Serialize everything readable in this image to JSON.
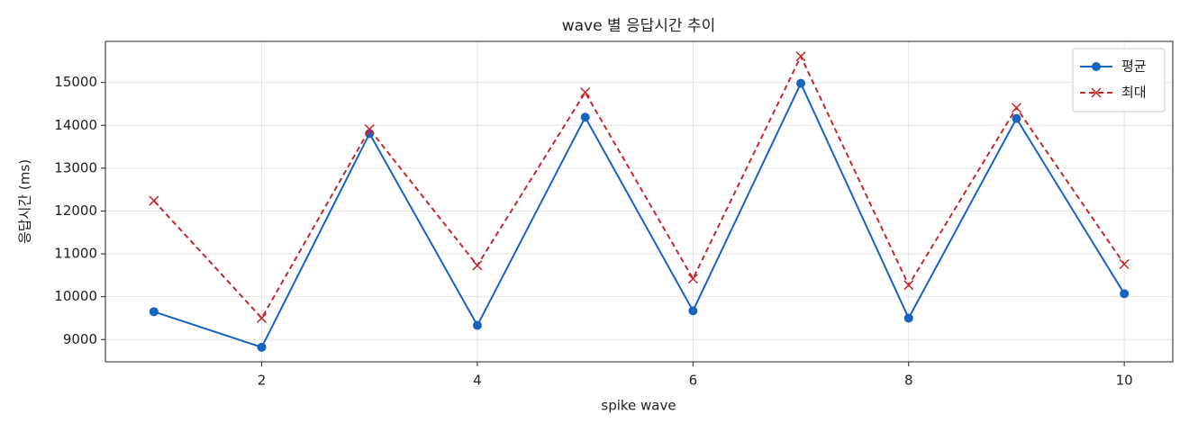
{
  "chart_data": {
    "type": "line",
    "title": "wave 별 응답시간 추이",
    "xlabel": "spike wave",
    "ylabel": "응답시간 (ms)",
    "x": [
      1,
      2,
      3,
      4,
      5,
      6,
      7,
      8,
      9,
      10
    ],
    "series": [
      {
        "name": "평균",
        "color": "#1565c0",
        "dash": false,
        "marker": "circle",
        "values": [
          9650,
          8820,
          13810,
          9330,
          14190,
          9670,
          14980,
          9500,
          14160,
          10070
        ]
      },
      {
        "name": "최대",
        "color": "#c62828",
        "dash": true,
        "marker": "x",
        "values": [
          12240,
          9500,
          13910,
          10730,
          14770,
          10420,
          15610,
          10270,
          14410,
          10760
        ]
      }
    ],
    "xlim": [
      0.55,
      10.45
    ],
    "xticks": [
      2,
      4,
      6,
      8,
      10
    ],
    "ylim": [
      8480,
      15960
    ],
    "yticks": [
      9000,
      10000,
      11000,
      12000,
      13000,
      14000,
      15000
    ],
    "grid": true,
    "legend": "upper-right"
  }
}
